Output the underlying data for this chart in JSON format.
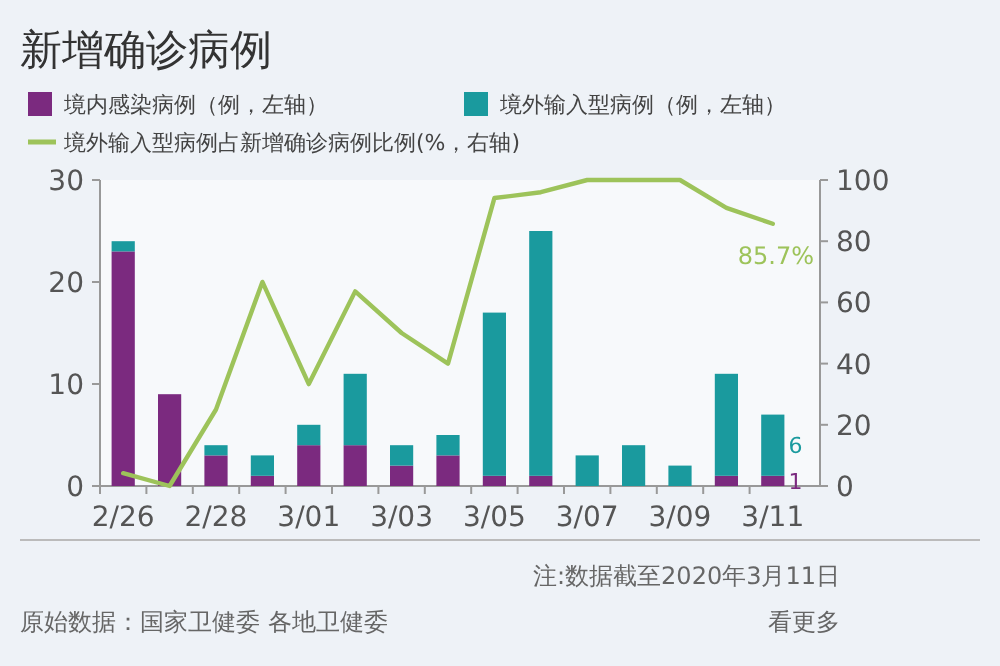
{
  "chart_data": {
    "type": "bar",
    "title": "新增确诊病例",
    "stacked": true,
    "legend": "top",
    "categories": [
      "2/26",
      null,
      "2/28",
      null,
      "3/01",
      null,
      "3/03",
      null,
      "3/05",
      null,
      "3/07",
      null,
      "3/09",
      null,
      "3/11"
    ],
    "series": [
      {
        "name": "境内感染病例（例，左轴）",
        "color": "#7b2a7f",
        "values": [
          23,
          9,
          3,
          1,
          4,
          4,
          2,
          3,
          1,
          1,
          0,
          0,
          0,
          1,
          1
        ],
        "value_labels": [
          null,
          null,
          null,
          null,
          null,
          null,
          null,
          null,
          null,
          null,
          null,
          null,
          null,
          null,
          "1"
        ]
      },
      {
        "name": "境外输入型病例（例，左轴）",
        "color": "#1a9a9e",
        "values": [
          1,
          0,
          1,
          2,
          2,
          7,
          2,
          2,
          16,
          24,
          3,
          4,
          2,
          10,
          6
        ],
        "value_labels": [
          null,
          null,
          null,
          null,
          null,
          null,
          null,
          null,
          null,
          null,
          null,
          null,
          null,
          null,
          "6"
        ]
      },
      {
        "name": "境外输入型病例占新增确诊病例比例(%，右轴)",
        "type": "line",
        "axis": "y2",
        "color": "#9dc35a",
        "values": [
          4.2,
          0,
          25,
          66.7,
          33.3,
          63.6,
          50,
          40,
          94.1,
          96,
          100,
          100,
          100,
          90.9,
          85.7
        ],
        "value_labels": [
          null,
          null,
          null,
          null,
          null,
          null,
          null,
          null,
          null,
          null,
          null,
          null,
          null,
          null,
          "85.7%"
        ]
      }
    ],
    "ylim": [
      0,
      30
    ],
    "yticks": [
      0,
      10,
      20,
      30
    ],
    "y2lim": [
      0,
      100
    ],
    "y2ticks": [
      0,
      20,
      40,
      60,
      80,
      100
    ],
    "annotations": [
      "注:数据截至2020年3月11日",
      "原始数据：国家卫健委 各地卫健委",
      "看更多"
    ]
  }
}
